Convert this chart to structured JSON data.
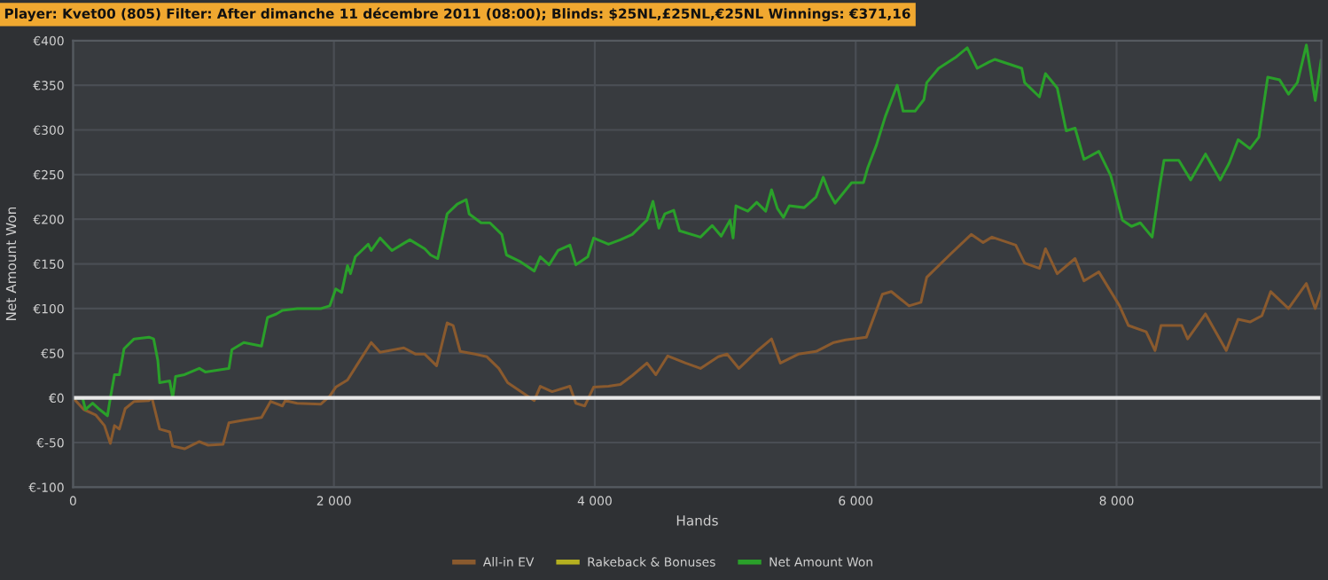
{
  "chart_data": {
    "type": "line",
    "title": "Player: Kvet00 (805) Filter: After dimanche 11 décembre 2011 (08:00); Blinds: $25NL,£25NL,€25NL Winnings: €371,16",
    "xlabel": "Hands",
    "ylabel": "Net Amount Won",
    "xlim": [
      0,
      9570
    ],
    "xticks": [
      {
        "value": 0,
        "label": "0"
      },
      {
        "value": 2000,
        "label": "2 000"
      },
      {
        "value": 4000,
        "label": "4 000"
      },
      {
        "value": 6000,
        "label": "6 000"
      },
      {
        "value": 8000,
        "label": "8 000"
      }
    ],
    "ylim": [
      -100,
      400
    ],
    "yticks": [
      {
        "value": -100,
        "label": "€-100"
      },
      {
        "value": -50,
        "label": "€-50"
      },
      {
        "value": 0,
        "label": "€0"
      },
      {
        "value": 50,
        "label": "€50"
      },
      {
        "value": 100,
        "label": "€100"
      },
      {
        "value": 150,
        "label": "€150"
      },
      {
        "value": 200,
        "label": "€200"
      },
      {
        "value": 250,
        "label": "€250"
      },
      {
        "value": 300,
        "label": "€300"
      },
      {
        "value": 350,
        "label": "€350"
      },
      {
        "value": 400,
        "label": "€400"
      }
    ],
    "grid": true,
    "legend": "bottom",
    "marker": "none",
    "line_style": "solid",
    "ref_lines": [
      {
        "axis": "y",
        "value": 0,
        "label": null,
        "color": "#e8e8e8"
      }
    ],
    "series": [
      {
        "name": "All-in EV",
        "color": "#8a5a2e",
        "x": [
          0,
          82,
          173,
          241,
          286,
          318,
          355,
          400,
          468,
          582,
          605,
          664,
          741,
          764,
          855,
          968,
          1036,
          1150,
          1195,
          1309,
          1445,
          1514,
          1605,
          1627,
          1718,
          1900,
          1968,
          2014,
          2104,
          2173,
          2286,
          2354,
          2536,
          2627,
          2696,
          2787,
          2868,
          2914,
          2968,
          3082,
          3173,
          3264,
          3332,
          3536,
          3582,
          3673,
          3809,
          3855,
          3923,
          3991,
          4105,
          4196,
          4287,
          4400,
          4468,
          4559,
          4696,
          4810,
          4946,
          5014,
          5105,
          5241,
          5355,
          5423,
          5560,
          5696,
          5832,
          5923,
          6082,
          6205,
          6273,
          6409,
          6500,
          6545,
          6727,
          6886,
          6977,
          7045,
          7227,
          7295,
          7409,
          7455,
          7545,
          7682,
          7750,
          7864,
          8023,
          8091,
          8227,
          8295,
          8341,
          8500,
          8545,
          8682,
          8841,
          8932,
          9023,
          9114,
          9182,
          9318,
          9455,
          9523,
          9568
        ],
        "values": [
          0,
          -13,
          -19,
          -31,
          -51,
          -31,
          -35,
          -12,
          -4,
          -3,
          0,
          -35,
          -38,
          -54,
          -57,
          -49,
          -53,
          -52,
          -28,
          -25,
          -22,
          -4,
          -9,
          -3,
          -6,
          -7,
          2,
          12,
          20,
          36,
          62,
          51,
          56,
          49,
          49,
          36,
          84,
          81,
          52,
          49,
          46,
          33,
          17,
          -3,
          13,
          7,
          13,
          -6,
          -9,
          12,
          13,
          15,
          25,
          39,
          26,
          47,
          39,
          33,
          46,
          49,
          33,
          52,
          66,
          39,
          49,
          52,
          62,
          65,
          68,
          116,
          119,
          103,
          107,
          135,
          161,
          183,
          174,
          180,
          171,
          151,
          145,
          167,
          139,
          156,
          131,
          141,
          103,
          81,
          74,
          53,
          81,
          81,
          66,
          94,
          53,
          88,
          85,
          92,
          119,
          100,
          128,
          100,
          119
        ]
      },
      {
        "name": "Rakeback & Bonuses",
        "color": "#b5b020"
      },
      {
        "name": "Net Amount Won",
        "color": "#2aa02a",
        "x": [
          0,
          73,
          95,
          150,
          195,
          264,
          286,
          318,
          355,
          391,
          468,
          582,
          618,
          650,
          664,
          741,
          764,
          786,
          855,
          968,
          1014,
          1195,
          1218,
          1309,
          1445,
          1491,
          1559,
          1605,
          1718,
          1900,
          1968,
          2014,
          2059,
          2104,
          2127,
          2164,
          2263,
          2286,
          2354,
          2445,
          2536,
          2582,
          2696,
          2741,
          2796,
          2868,
          2946,
          3014,
          3037,
          3128,
          3196,
          3287,
          3323,
          3423,
          3536,
          3582,
          3650,
          3718,
          3809,
          3855,
          3946,
          3991,
          4105,
          4196,
          4287,
          4400,
          4446,
          4491,
          4537,
          4605,
          4650,
          4810,
          4900,
          4969,
          5037,
          5060,
          5082,
          5173,
          5241,
          5310,
          5355,
          5400,
          5446,
          5491,
          5605,
          5696,
          5751,
          5796,
          5842,
          5969,
          6060,
          6091,
          6159,
          6227,
          6318,
          6364,
          6455,
          6523,
          6545,
          6636,
          6773,
          6855,
          6932,
          7023,
          7068,
          7273,
          7295,
          7409,
          7455,
          7545,
          7614,
          7682,
          7750,
          7864,
          7955,
          8045,
          8114,
          8182,
          8273,
          8327,
          8364,
          8477,
          8568,
          8682,
          8795,
          8864,
          8932,
          9023,
          9091,
          9159,
          9250,
          9318,
          9386,
          9455,
          9523,
          9568
        ],
        "values": [
          0,
          0,
          -13,
          -6,
          -12,
          -20,
          0,
          26,
          26,
          55,
          66,
          68,
          66,
          42,
          17,
          19,
          0,
          24,
          26,
          33,
          29,
          33,
          54,
          62,
          58,
          90,
          94,
          98,
          100,
          100,
          103,
          122,
          118,
          148,
          139,
          158,
          172,
          165,
          179,
          165,
          173,
          177,
          167,
          160,
          156,
          206,
          217,
          222,
          206,
          196,
          196,
          183,
          160,
          153,
          142,
          158,
          149,
          165,
          171,
          149,
          158,
          179,
          172,
          177,
          183,
          199,
          220,
          190,
          206,
          210,
          187,
          180,
          193,
          181,
          199,
          179,
          215,
          209,
          219,
          209,
          233,
          212,
          202,
          215,
          213,
          225,
          247,
          230,
          218,
          241,
          241,
          257,
          283,
          315,
          350,
          321,
          321,
          334,
          353,
          369,
          382,
          392,
          369,
          376,
          379,
          369,
          353,
          337,
          363,
          347,
          299,
          302,
          267,
          276,
          249,
          199,
          192,
          196,
          180,
          234,
          266,
          266,
          244,
          273,
          244,
          263,
          289,
          279,
          292,
          359,
          356,
          340,
          353,
          395,
          333,
          378
        ]
      }
    ]
  }
}
